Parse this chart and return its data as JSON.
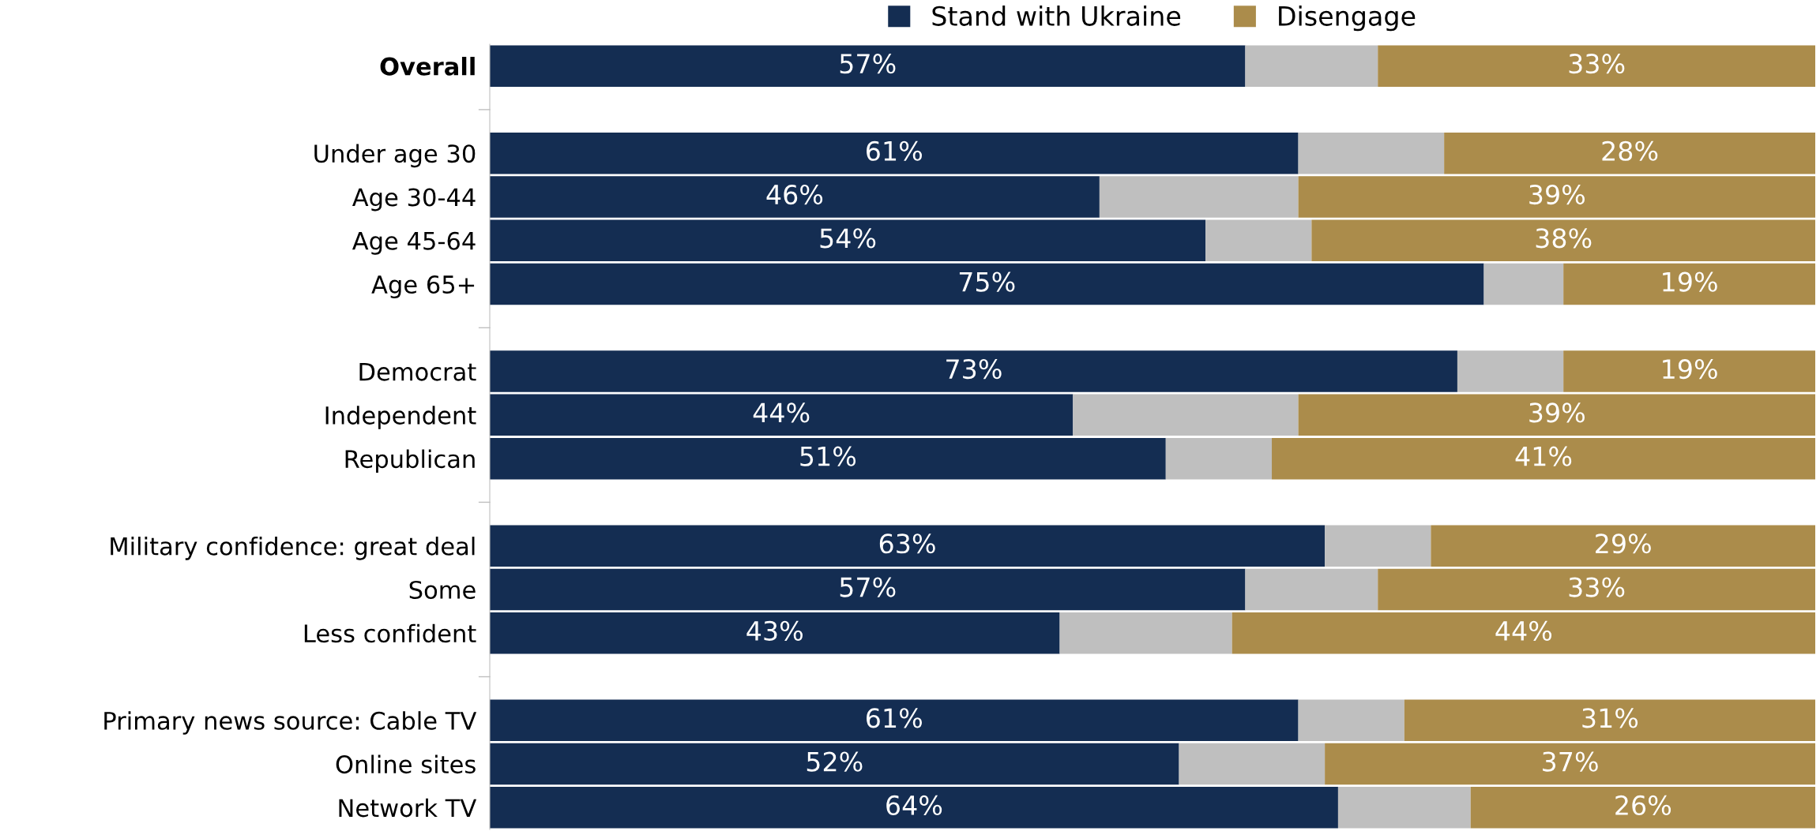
{
  "chart_data": {
    "type": "bar",
    "orientation": "horizontal",
    "stacked": true,
    "categories": [
      "Overall",
      null,
      "Under age 30",
      "Age 30-44",
      "Age 45-64",
      "Age 65+",
      null,
      "Democrat",
      "Independent",
      "Republican",
      null,
      "Military confidence: great deal",
      "Some",
      "Less confident",
      null,
      "Primary news source: Cable TV",
      "Online sites",
      "Network TV"
    ],
    "series": [
      {
        "name": "Stand with Ukraine",
        "color": "#142d52",
        "values": [
          57,
          null,
          61,
          46,
          54,
          75,
          null,
          73,
          44,
          51,
          null,
          63,
          57,
          43,
          null,
          61,
          52,
          64
        ],
        "value_labels": [
          "57%",
          null,
          "61%",
          "46%",
          "54%",
          "75%",
          null,
          "73%",
          "44%",
          "51%",
          null,
          "63%",
          "57%",
          "43%",
          null,
          "61%",
          "52%",
          "64%"
        ]
      },
      {
        "color": "#bfbfbf",
        "values": [
          10,
          null,
          11,
          15,
          8,
          6,
          null,
          8,
          17,
          8,
          null,
          8,
          10,
          13,
          null,
          8,
          11,
          10
        ]
      },
      {
        "name": "Disengage",
        "color": "#ab8c4b",
        "values": [
          33,
          null,
          28,
          39,
          38,
          19,
          null,
          19,
          39,
          41,
          null,
          29,
          33,
          44,
          null,
          31,
          37,
          26
        ],
        "value_labels": [
          "33%",
          null,
          "28%",
          "39%",
          "38%",
          "19%",
          null,
          "19%",
          "39%",
          "41%",
          null,
          "29%",
          "33%",
          "44%",
          null,
          "31%",
          "37%",
          "26%"
        ]
      }
    ],
    "xlim": [
      0,
      100
    ],
    "tick_labels": "y",
    "grid": false,
    "legend": "top"
  }
}
